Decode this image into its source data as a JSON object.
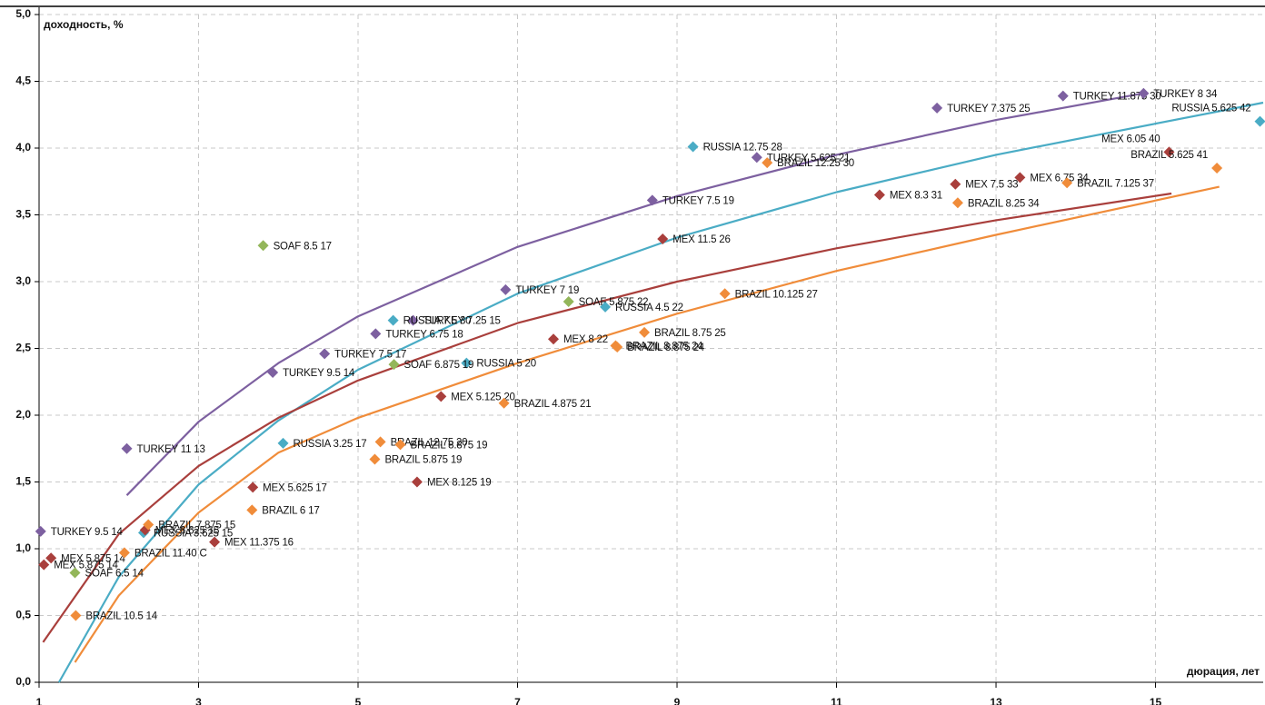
{
  "chart_data": {
    "type": "scatter",
    "y_label": "доходность, %",
    "x_label": "дюрация, лет",
    "xlim": [
      1,
      16.35
    ],
    "ylim": [
      0,
      5
    ],
    "xticks": [
      1,
      3,
      5,
      7,
      9,
      11,
      13,
      15
    ],
    "yticks": [
      {
        "value": 0,
        "label": "0,0"
      },
      {
        "value": 0.5,
        "label": "0,5"
      },
      {
        "value": 1,
        "label": "1,0"
      },
      {
        "value": 1.5,
        "label": "1,5"
      },
      {
        "value": 2,
        "label": "2,0"
      },
      {
        "value": 2.5,
        "label": "2,5"
      },
      {
        "value": 3,
        "label": "3,0"
      },
      {
        "value": 3.5,
        "label": "3,5"
      },
      {
        "value": 4,
        "label": "4,0"
      },
      {
        "value": 4.5,
        "label": "4,5"
      },
      {
        "value": 5,
        "label": "5,0"
      }
    ],
    "grid": true,
    "series": [
      {
        "color": "#7d60a0",
        "x": [
          1.02,
          2.1,
          3.93,
          4.58,
          5.22,
          5.69,
          6.85,
          8.69,
          10.0,
          12.26,
          13.84,
          14.85
        ],
        "values": [
          1.13,
          1.75,
          2.32,
          2.46,
          2.61,
          2.71,
          2.94,
          3.61,
          3.93,
          4.3,
          4.39,
          4.41
        ],
        "labels": [
          "TURKEY 9.5 14",
          "TURKEY 11 13",
          "TURKEY 9.5 14",
          "TURKEY 7.5 17",
          "TURKEY 6.75 18",
          "TURKEY 7.25 15",
          "TURKEY 7 19",
          "TURKEY 7.5 19",
          "TURKEY 5.625 21",
          "TURKEY 7.375 25",
          "TURKEY 11.875 30",
          "TURKEY 8 34"
        ],
        "trend_x": [
          2.1,
          3,
          4,
          5,
          7,
          9,
          11,
          13,
          14.85
        ],
        "trend_y": [
          1.4,
          1.95,
          2.39,
          2.74,
          3.26,
          3.64,
          3.95,
          4.21,
          4.41
        ]
      },
      {
        "color": "#4aacc5",
        "x": [
          2.31,
          4.06,
          5.44,
          6.36,
          8.1,
          9.2,
          16.31
        ],
        "values": [
          1.12,
          1.79,
          2.71,
          2.39,
          2.81,
          4.01,
          4.2
        ],
        "labels": [
          "RUSSIA 3.625 15",
          "RUSSIA 3.25 17",
          "RUSSIA 7.5 30",
          "RUSSIA 5 20",
          "RUSSIA 4.5 22",
          "RUSSIA 12.75 28",
          "RUSSIA 5.625 42"
        ],
        "trend_x": [
          1.25,
          2,
          3,
          4,
          5,
          7,
          9,
          11,
          13,
          16.35
        ],
        "trend_y": [
          0.0,
          0.79,
          1.48,
          1.96,
          2.34,
          2.91,
          3.33,
          3.67,
          3.95,
          4.34
        ]
      },
      {
        "color": "#a93f3c",
        "x": [
          1.06,
          1.15,
          2.33,
          3.2,
          3.68,
          5.74,
          6.04,
          7.45,
          8.82,
          11.54,
          12.49,
          13.3,
          15.17
        ],
        "values": [
          0.88,
          0.93,
          1.14,
          1.05,
          1.46,
          1.5,
          2.14,
          2.57,
          3.32,
          3.65,
          3.73,
          3.78,
          3.97
        ],
        "labels": [
          "MEX 5.875 14",
          "MEX 5.875 14",
          "MEX 6.625 15",
          "MEX 11.375 16",
          "MEX 5.625 17",
          "MEX 8.125 19",
          "MEX 5.125 20",
          "MEX 8 22",
          "MEX 11.5 26",
          "MEX 8.3 31",
          "MEX 7.5 33",
          "MEX 6.75 34",
          "MEX 6.05 40"
        ],
        "trend_x": [
          1.05,
          2,
          3,
          4,
          5,
          7,
          9,
          11,
          13,
          15.2
        ],
        "trend_y": [
          0.3,
          1.11,
          1.62,
          1.98,
          2.26,
          2.69,
          3.0,
          3.25,
          3.46,
          3.66
        ]
      },
      {
        "color": "#f08c3a",
        "x": [
          1.46,
          2.07,
          2.37,
          3.67,
          5.21,
          5.28,
          5.53,
          6.83,
          8.23,
          8.25,
          8.59,
          9.6,
          10.13,
          12.52,
          13.89,
          15.77
        ],
        "values": [
          0.5,
          0.97,
          1.18,
          1.29,
          1.67,
          1.8,
          1.78,
          2.09,
          2.52,
          2.51,
          2.62,
          2.91,
          3.89,
          3.59,
          3.74,
          3.85
        ],
        "labels": [
          "BRAZIL 10.5 14",
          "BRAZIL 11.40 C",
          "BRAZIL 7.875 15",
          "BRAZIL 6 17",
          "BRAZIL 5.875 19",
          "BRAZIL 12.75 20",
          "BRAZIL 8.875 19",
          "BRAZIL 4.875 21",
          "BRAZIL 8.875 24",
          "BRAZIL 8.875 24",
          "BRAZIL 8.75 25",
          "BRAZIL 10.125 27",
          "BRAZIL 12.25 30",
          "BRAZIL 8.25 34",
          "BRAZIL 7.125 37",
          "BRAZIL 5.625 41"
        ],
        "trend_x": [
          1.45,
          2,
          3,
          4,
          5,
          7,
          9,
          11,
          13,
          15.8
        ],
        "trend_y": [
          0.15,
          0.65,
          1.27,
          1.72,
          1.98,
          2.39,
          2.76,
          3.08,
          3.35,
          3.71
        ]
      },
      {
        "color": "#93b65a",
        "x": [
          1.45,
          3.81,
          5.45,
          7.64
        ],
        "values": [
          0.82,
          3.27,
          2.38,
          2.85
        ],
        "labels": [
          "SOAF 6.5 14",
          "SOAF 8.5 17",
          "SOAF 6.875 19",
          "SOAF 5.875 22"
        ]
      }
    ]
  }
}
